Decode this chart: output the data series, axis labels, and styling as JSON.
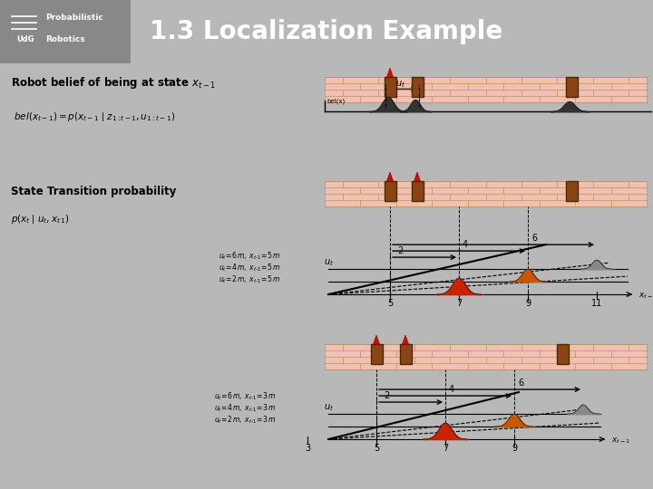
{
  "title": "1.3 Localization Example",
  "bg_color": "#b8b8b8",
  "header_bg": "#707070",
  "header_text_color": "#ffffff",
  "subtitle1": "Robot belief of being at state $x_{t-1}$",
  "subtitle2": "State Transition probability",
  "wall_bg": "#f0c0b0",
  "wall_line_color": "#c09060",
  "door_color": "#8b4513",
  "robot_color_red": "#cc1100",
  "gaussian_dark": "#333333",
  "gaussian_red": "#cc2200",
  "gaussian_orange": "#cc5500",
  "gaussian_gray": "#888888",
  "xticks1": [
    5,
    7,
    9,
    11
  ],
  "xticks2": [
    3,
    5,
    7,
    9
  ],
  "legend1_lines": [
    "ut=6 m, xt-1=5 m",
    "ut=4 m, xt-1=5 m",
    "ut=2 m, xt-1=5 m"
  ],
  "legend2_lines": [
    "ut=6 m, xt-1=3 m",
    "ut=4 m, xt-1=3 m",
    "ut=2 m, xt-1=3 m"
  ]
}
